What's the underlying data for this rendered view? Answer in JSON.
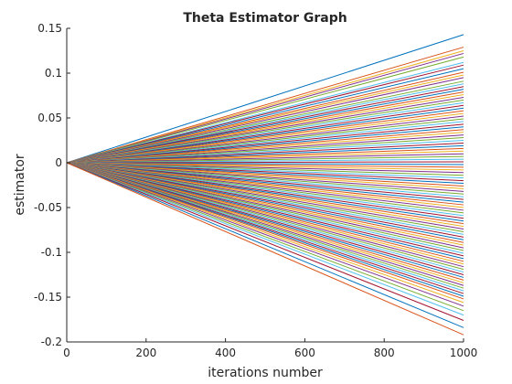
{
  "chart_data": {
    "type": "line",
    "title": "Theta Estimator Graph",
    "xlabel": "iterations number",
    "ylabel": "estimator",
    "xlim": [
      0,
      1000
    ],
    "ylim": [
      -0.2,
      0.15
    ],
    "xticks": [
      0,
      200,
      400,
      600,
      800,
      1000
    ],
    "xtick_labels": [
      "0",
      "200",
      "400",
      "600",
      "800",
      "1000"
    ],
    "yticks": [
      -0.2,
      -0.15,
      -0.1,
      -0.05,
      0,
      0.05,
      0.1,
      0.15
    ],
    "ytick_labels": [
      "-0.2",
      "-0.15",
      "-0.1",
      "-0.05",
      "0",
      "0.05",
      "0.1",
      "0.15"
    ],
    "grid": false,
    "legend": "none",
    "series_start": [
      0,
      0
    ],
    "series_end_x": 1000,
    "series_end_values": [
      0.143,
      0.129,
      0.125,
      0.122,
      0.118,
      0.112,
      0.109,
      0.105,
      0.101,
      0.098,
      0.095,
      0.091,
      0.088,
      0.085,
      0.082,
      0.079,
      0.076,
      0.073,
      0.07,
      0.067,
      0.064,
      0.061,
      0.058,
      0.055,
      0.052,
      0.049,
      0.046,
      0.043,
      0.04,
      0.037,
      0.034,
      0.031,
      0.028,
      0.025,
      0.022,
      0.019,
      0.016,
      0.013,
      0.01,
      0.007,
      0.004,
      0.001,
      -0.002,
      -0.005,
      -0.008,
      -0.011,
      -0.014,
      -0.017,
      -0.02,
      -0.023,
      -0.026,
      -0.029,
      -0.032,
      -0.035,
      -0.038,
      -0.041,
      -0.044,
      -0.047,
      -0.05,
      -0.053,
      -0.056,
      -0.059,
      -0.062,
      -0.065,
      -0.068,
      -0.071,
      -0.074,
      -0.077,
      -0.08,
      -0.083,
      -0.086,
      -0.089,
      -0.092,
      -0.095,
      -0.098,
      -0.101,
      -0.104,
      -0.107,
      -0.11,
      -0.113,
      -0.116,
      -0.119,
      -0.122,
      -0.125,
      -0.128,
      -0.131,
      -0.134,
      -0.137,
      -0.14,
      -0.143,
      -0.146,
      -0.149,
      -0.152,
      -0.156,
      -0.16,
      -0.165,
      -0.17,
      -0.176,
      -0.184,
      -0.192
    ],
    "colors": [
      "#0072BD",
      "#D95319",
      "#EDB120",
      "#7E2F8E",
      "#77AC30",
      "#4DBEEE",
      "#A2142F"
    ]
  }
}
